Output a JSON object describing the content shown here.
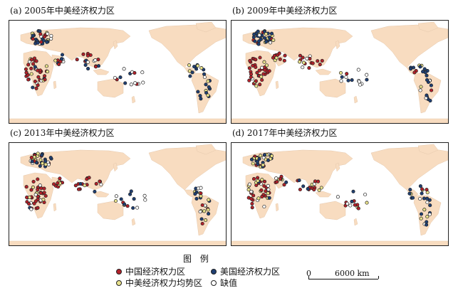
{
  "panels": [
    {
      "title": "(a) 2005年中美经济权力区"
    },
    {
      "title": "(b) 2009年中美经济权力区"
    },
    {
      "title": "(c) 2013年中美经济权力区"
    },
    {
      "title": "(d) 2017年中美经济权力区"
    }
  ],
  "colors": {
    "land": "#f8dcc0",
    "ocean": "#ffffff",
    "china_zone": "#b3212a",
    "us_zone": "#1f3f73",
    "balanced_zone": "#e9e28c",
    "missing": "#ffffff",
    "dot_outline": "#222222"
  },
  "legend": {
    "title": "图  例",
    "items": [
      {
        "label": "中国经济权力区",
        "color_key": "china_zone"
      },
      {
        "label": "美国经济权力区",
        "color_key": "us_zone"
      },
      {
        "label": "中美经济权力均势区",
        "color_key": "balanced_zone"
      },
      {
        "label": "缺值",
        "color_key": "missing"
      }
    ]
  },
  "scalebar": {
    "start_label": "0",
    "end_label": "6000 km"
  }
}
